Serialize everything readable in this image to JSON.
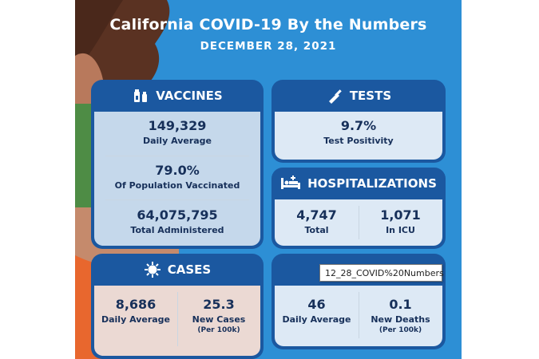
{
  "header": {
    "title": "California COVID-19 By the Numbers",
    "date": "DECEMBER 28, 2021"
  },
  "vaccines": {
    "heading": "VACCINES",
    "items": [
      {
        "value": "149,329",
        "label": "Daily Average"
      },
      {
        "value": "79.0%",
        "label": "Of Population Vaccinated"
      },
      {
        "value": "64,075,795",
        "label": "Total Administered"
      }
    ]
  },
  "tests": {
    "heading": "TESTS",
    "value": "9.7%",
    "label": "Test Positivity"
  },
  "hospitalizations": {
    "heading": "HOSPITALIZATIONS",
    "items": [
      {
        "value": "4,747",
        "label": "Total"
      },
      {
        "value": "1,071",
        "label": "In ICU"
      }
    ]
  },
  "cases": {
    "heading": "CASES",
    "items": [
      {
        "value": "8,686",
        "label": "Daily Average",
        "note": ""
      },
      {
        "value": "25.3",
        "label": "New Cases",
        "note": "(Per 100k)"
      }
    ]
  },
  "deaths": {
    "items": [
      {
        "value": "46",
        "label": "Daily Average",
        "note": ""
      },
      {
        "value": "0.1",
        "label": "New Deaths",
        "note": "(Per 100k)"
      }
    ]
  },
  "tooltip": {
    "text": "12_28_COVID%20Numbers"
  },
  "colors": {
    "background": "#2d8fd5",
    "card_header": "#1b58a0",
    "card_body_light": "#dde9f5",
    "cases_body": "#fbe3d7",
    "text_dark": "#17305a"
  }
}
